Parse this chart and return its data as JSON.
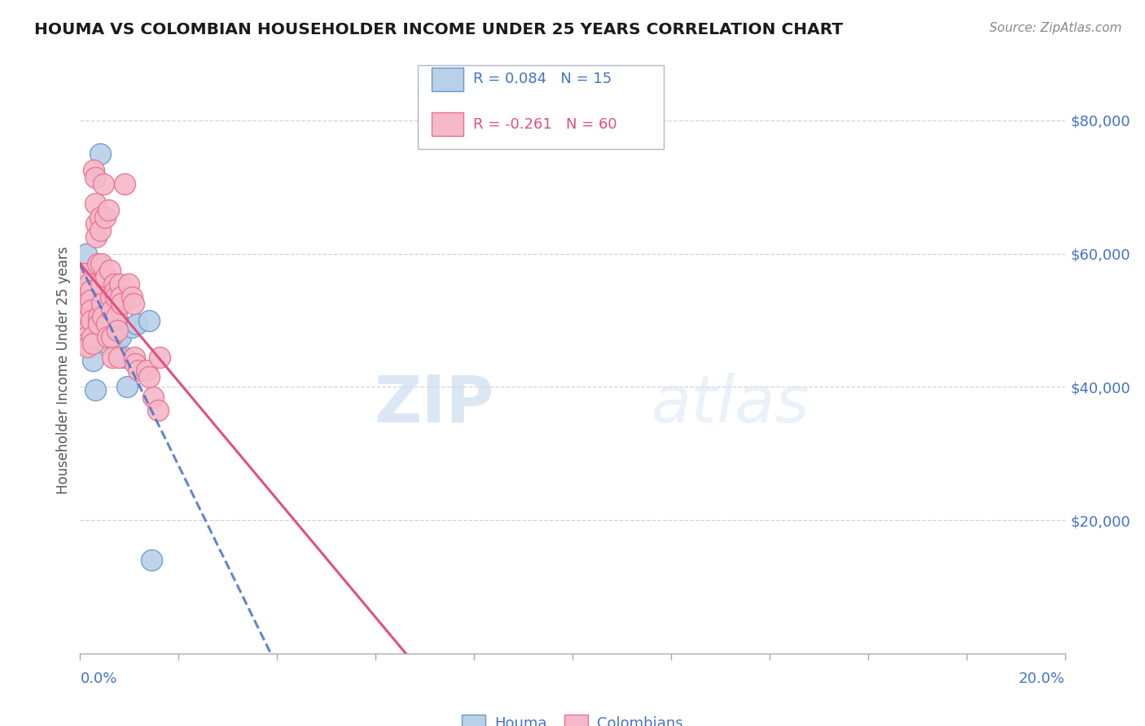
{
  "title": "HOUMA VS COLOMBIAN HOUSEHOLDER INCOME UNDER 25 YEARS CORRELATION CHART",
  "source": "Source: ZipAtlas.com",
  "ylabel": "Householder Income Under 25 years",
  "right_ytick_labels": [
    "$80,000",
    "$60,000",
    "$40,000",
    "$20,000"
  ],
  "right_ytick_values": [
    80000,
    60000,
    40000,
    20000
  ],
  "houma_R": 0.084,
  "houma_N": 15,
  "colombians_R": -0.261,
  "colombians_N": 60,
  "houma_fill_color": "#b8d0e8",
  "houma_edge_color": "#6699cc",
  "colombians_fill_color": "#f5b8c8",
  "colombians_edge_color": "#e87090",
  "houma_line_color": "#4472c4",
  "colombians_line_color": "#e05080",
  "houma_points": [
    [
      0.0012,
      60000
    ],
    [
      0.0025,
      44000
    ],
    [
      0.003,
      39500
    ],
    [
      0.004,
      75000
    ],
    [
      0.0048,
      48500
    ],
    [
      0.0055,
      46500
    ],
    [
      0.0065,
      50000
    ],
    [
      0.0075,
      47500
    ],
    [
      0.0082,
      47500
    ],
    [
      0.009,
      44500
    ],
    [
      0.0095,
      40000
    ],
    [
      0.0105,
      49000
    ],
    [
      0.0115,
      49500
    ],
    [
      0.014,
      50000
    ],
    [
      0.0145,
      14000
    ]
  ],
  "colombians_points": [
    [
      0.0008,
      57000
    ],
    [
      0.001,
      52500
    ],
    [
      0.0011,
      50000
    ],
    [
      0.0012,
      48500
    ],
    [
      0.0012,
      47500
    ],
    [
      0.0013,
      46500
    ],
    [
      0.0014,
      46000
    ],
    [
      0.0018,
      55500
    ],
    [
      0.002,
      54500
    ],
    [
      0.0021,
      53000
    ],
    [
      0.0022,
      51500
    ],
    [
      0.0023,
      50000
    ],
    [
      0.0024,
      47500
    ],
    [
      0.0025,
      46500
    ],
    [
      0.0028,
      72500
    ],
    [
      0.003,
      71500
    ],
    [
      0.0031,
      67500
    ],
    [
      0.0032,
      64500
    ],
    [
      0.0033,
      62500
    ],
    [
      0.0035,
      58500
    ],
    [
      0.0037,
      50500
    ],
    [
      0.0038,
      49500
    ],
    [
      0.004,
      65500
    ],
    [
      0.0041,
      63500
    ],
    [
      0.0042,
      58500
    ],
    [
      0.0043,
      55500
    ],
    [
      0.0044,
      52500
    ],
    [
      0.0045,
      50500
    ],
    [
      0.0048,
      70500
    ],
    [
      0.005,
      65500
    ],
    [
      0.0052,
      56500
    ],
    [
      0.0054,
      49500
    ],
    [
      0.0056,
      47500
    ],
    [
      0.0058,
      66500
    ],
    [
      0.006,
      57500
    ],
    [
      0.0062,
      53500
    ],
    [
      0.0063,
      51500
    ],
    [
      0.0064,
      47500
    ],
    [
      0.0065,
      44500
    ],
    [
      0.0068,
      55500
    ],
    [
      0.007,
      54500
    ],
    [
      0.0072,
      53500
    ],
    [
      0.0074,
      50500
    ],
    [
      0.0076,
      48500
    ],
    [
      0.0078,
      44500
    ],
    [
      0.008,
      55500
    ],
    [
      0.0082,
      53500
    ],
    [
      0.0084,
      52500
    ],
    [
      0.009,
      70500
    ],
    [
      0.0098,
      55500
    ],
    [
      0.0105,
      53500
    ],
    [
      0.0108,
      52500
    ],
    [
      0.011,
      44500
    ],
    [
      0.0112,
      43500
    ],
    [
      0.0118,
      42500
    ],
    [
      0.0135,
      42500
    ],
    [
      0.014,
      41500
    ],
    [
      0.0148,
      38500
    ],
    [
      0.0158,
      36500
    ],
    [
      0.0162,
      44500
    ]
  ],
  "xmin": 0.0,
  "xmax": 0.2,
  "ymin": 0,
  "ymax": 85000,
  "watermark_zip": "ZIP",
  "watermark_atlas": "atlas",
  "background_color": "#ffffff",
  "grid_color": "#c8c8c8",
  "legend_box_color": "#e8e8f0"
}
